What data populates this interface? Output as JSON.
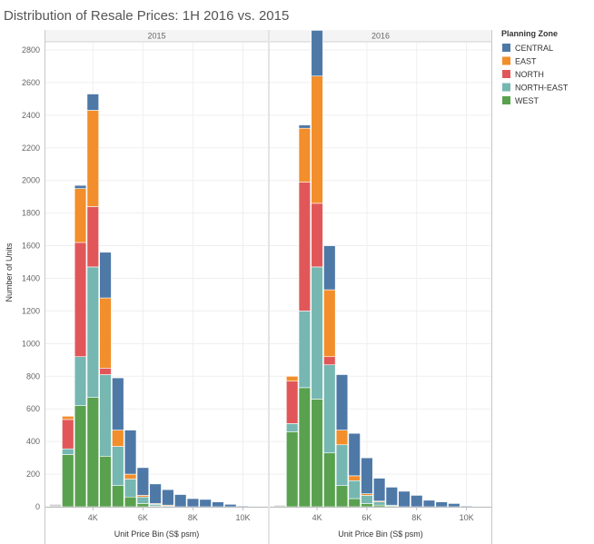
{
  "chart_data": {
    "type": "bar",
    "stacked": true,
    "title": "Distribution of Resale Prices: 1H 2016 vs. 2015",
    "xlabel": "Unit Price Bin (S$ psm)",
    "ylabel": "Number of Units",
    "ylim": [
      0,
      2850
    ],
    "yticks": [
      0,
      200,
      400,
      600,
      800,
      1000,
      1200,
      1400,
      1600,
      1800,
      2000,
      2200,
      2400,
      2600,
      2800
    ],
    "xticks": [
      {
        "label": "4K",
        "value": 4000
      },
      {
        "label": "6K",
        "value": 6000
      },
      {
        "label": "8K",
        "value": 8000
      },
      {
        "label": "10K",
        "value": 10000
      }
    ],
    "xlim": [
      2100,
      11000
    ],
    "bin_width": 500,
    "grid": true,
    "legend": {
      "title": "Planning Zone",
      "position": "right"
    },
    "zones": [
      {
        "name": "CENTRAL",
        "color": "#4e79a7"
      },
      {
        "name": "EAST",
        "color": "#f28e2b"
      },
      {
        "name": "NORTH",
        "color": "#e15759"
      },
      {
        "name": "NORTH-EAST",
        "color": "#76b7b2"
      },
      {
        "name": "WEST",
        "color": "#59a14f"
      }
    ],
    "bins": [
      2500,
      3000,
      3500,
      4000,
      4500,
      5000,
      5500,
      6000,
      6500,
      7000,
      7500,
      8000,
      8500,
      9000,
      9500,
      10000
    ],
    "panels": [
      {
        "label": "2015",
        "series": [
          {
            "name": "WEST",
            "values": [
              0,
              320,
              620,
              670,
              310,
              130,
              60,
              20,
              5,
              0,
              0,
              0,
              0,
              0,
              0,
              0
            ]
          },
          {
            "name": "NORTH-EAST",
            "values": [
              0,
              35,
              300,
              800,
              500,
              240,
              110,
              40,
              10,
              5,
              0,
              0,
              0,
              0,
              0,
              0
            ]
          },
          {
            "name": "NORTH",
            "values": [
              0,
              180,
              700,
              370,
              40,
              0,
              0,
              0,
              0,
              0,
              0,
              0,
              0,
              0,
              0,
              0
            ]
          },
          {
            "name": "EAST",
            "values": [
              0,
              20,
              330,
              590,
              430,
              100,
              30,
              10,
              5,
              5,
              0,
              0,
              0,
              0,
              0,
              0
            ]
          },
          {
            "name": "CENTRAL",
            "values": [
              15,
              0,
              20,
              100,
              280,
              320,
              270,
              170,
              120,
              95,
              75,
              50,
              45,
              30,
              15,
              5
            ]
          }
        ]
      },
      {
        "label": "2016",
        "series": [
          {
            "name": "WEST",
            "values": [
              0,
              460,
              730,
              660,
              330,
              130,
              50,
              20,
              10,
              5,
              0,
              0,
              0,
              0,
              0,
              0
            ]
          },
          {
            "name": "NORTH-EAST",
            "values": [
              0,
              50,
              470,
              810,
              540,
              250,
              110,
              50,
              20,
              5,
              0,
              0,
              0,
              0,
              0,
              0
            ]
          },
          {
            "name": "NORTH",
            "values": [
              0,
              260,
              790,
              390,
              50,
              0,
              0,
              0,
              0,
              0,
              0,
              0,
              0,
              0,
              0,
              0
            ]
          },
          {
            "name": "EAST",
            "values": [
              0,
              30,
              330,
              780,
              410,
              90,
              30,
              10,
              5,
              0,
              0,
              0,
              0,
              0,
              0,
              0
            ]
          },
          {
            "name": "CENTRAL",
            "values": [
              10,
              0,
              20,
              280,
              270,
              340,
              260,
              220,
              140,
              110,
              95,
              70,
              40,
              30,
              20,
              5
            ]
          }
        ]
      }
    ]
  }
}
